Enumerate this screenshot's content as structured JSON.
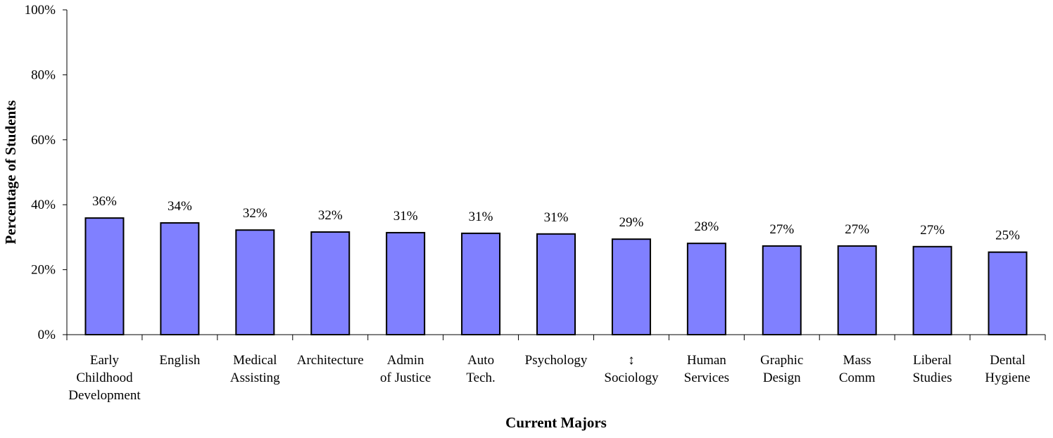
{
  "chart_data": {
    "type": "bar",
    "x_label": "Current Majors",
    "y_label": "Percentage of Students",
    "categories": [
      "Early\nChildhood\nDevelopment",
      "English",
      "Medical\nAssisting",
      "Architecture",
      "Admin\nof Justice",
      "Auto\nTech.",
      "Psychology",
      "↕\nSociology",
      "Human\nServices",
      "Graphic\nDesign",
      "Mass\nComm",
      "Liberal\nStudies",
      "Dental\nHygiene"
    ],
    "values": [
      35.9,
      34.4,
      32.2,
      31.6,
      31.4,
      31.2,
      31.0,
      29.4,
      28.1,
      27.3,
      27.3,
      27.1,
      25.4
    ],
    "value_labels": [
      "36%",
      "34%",
      "32%",
      "32%",
      "31%",
      "31%",
      "31%",
      "29%",
      "28%",
      "27%",
      "27%",
      "27%",
      "25%"
    ],
    "color": "#8080ff",
    "ylim": [
      0,
      100
    ],
    "yticks": [
      {
        "value": 0,
        "label": "0%"
      },
      {
        "value": 20,
        "label": "20%"
      },
      {
        "value": 40,
        "label": "40%"
      },
      {
        "value": 60,
        "label": "60%"
      },
      {
        "value": 80,
        "label": "80%"
      },
      {
        "value": 100,
        "label": "100%"
      }
    ],
    "grid": false
  }
}
